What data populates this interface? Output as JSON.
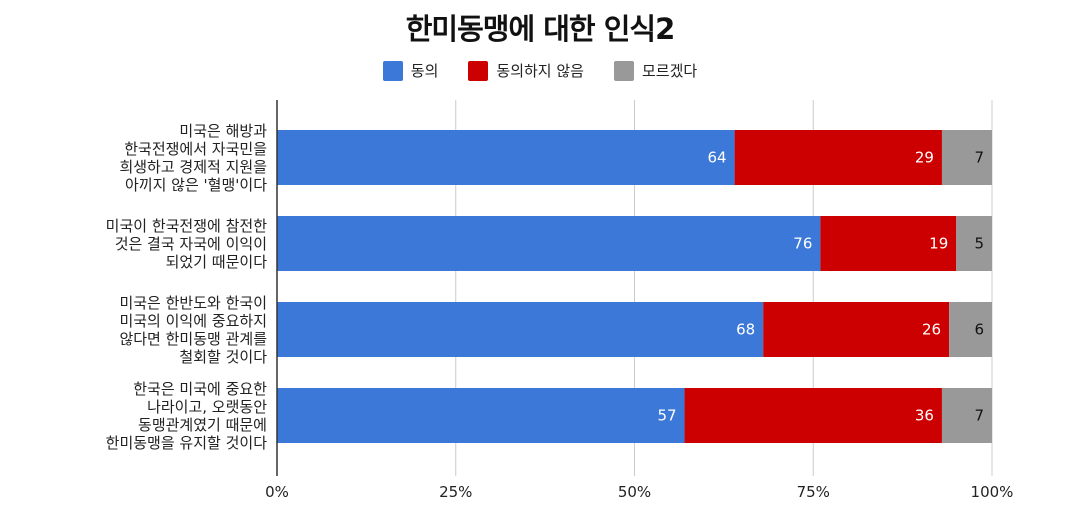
{
  "chart_data": {
    "type": "bar",
    "orientation": "horizontal",
    "stacked": true,
    "title": "한미동맹에 대한 인식2",
    "categories": [
      "미국은 해방과\n한국전쟁에서 자국민을\n희생하고 경제적 지원을\n아끼지 않은 '혈맹'이다",
      "미국이 한국전쟁에 참전한\n것은 결국 자국에 이익이\n되었기 때문이다",
      "미국은 한반도와 한국이\n미국의 이익에 중요하지\n않다면 한미동맹 관계를\n철회할 것이다",
      "한국은 미국에 중요한\n나라이고, 오랫동안\n동맹관계였기 때문에\n한미동맹을 유지할 것이다"
    ],
    "series": [
      {
        "name": "동의",
        "color": "#3c78d8",
        "label_color": "#ffffff",
        "values": [
          64,
          76,
          68,
          57
        ]
      },
      {
        "name": "동의하지 않음",
        "color": "#cc0000",
        "label_color": "#ffffff",
        "values": [
          29,
          19,
          26,
          36
        ]
      },
      {
        "name": "모르겠다",
        "color": "#999999",
        "label_color": "#111111",
        "values": [
          7,
          5,
          6,
          7
        ]
      }
    ],
    "xlim": [
      0,
      100
    ],
    "x_ticks": [
      "0%",
      "25%",
      "50%",
      "75%",
      "100%"
    ],
    "legend_position": "top",
    "grid": true
  }
}
